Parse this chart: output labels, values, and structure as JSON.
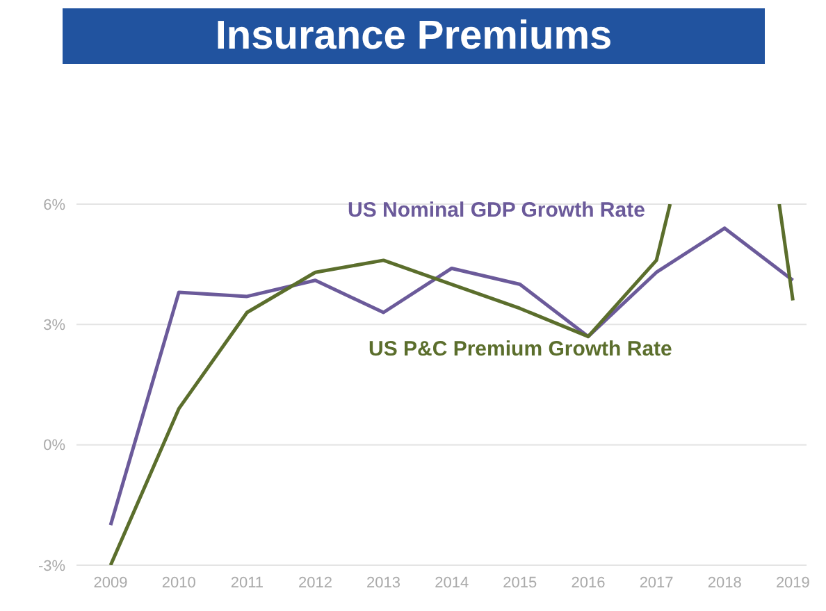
{
  "chart_data": {
    "type": "line",
    "title": "Insurance Premiums",
    "x": [
      2009,
      2010,
      2011,
      2012,
      2013,
      2014,
      2015,
      2016,
      2017,
      2018,
      2019
    ],
    "series": [
      {
        "name": "US Nominal GDP Growth Rate",
        "color": "#6b5a9a",
        "values": [
          -2.0,
          3.8,
          3.7,
          4.1,
          3.3,
          4.4,
          4.0,
          2.7,
          4.3,
          5.4,
          4.1
        ]
      },
      {
        "name": "US P&C Premium Growth Rate",
        "color": "#5b6e2c",
        "x": [
          2009,
          2010,
          2011,
          2012,
          2013,
          2014,
          2015,
          2016,
          2017,
          2017.2,
          2018,
          2018.8,
          2019
        ],
        "values": [
          -3.0,
          0.9,
          3.3,
          4.3,
          4.6,
          4.0,
          3.4,
          2.7,
          4.6,
          6.0,
          null,
          6.0,
          3.6
        ]
      }
    ],
    "xlim": [
      2008.5,
      2019.2
    ],
    "xticks": [
      2009,
      2010,
      2011,
      2012,
      2013,
      2014,
      2015,
      2016,
      2017,
      2018,
      2019
    ],
    "ylim": [
      -3,
      6
    ],
    "yticks": [
      {
        "value": -3,
        "label": "-3%"
      },
      {
        "value": 0,
        "label": "0%"
      },
      {
        "value": 3,
        "label": "3%"
      },
      {
        "value": 6,
        "label": "6%"
      }
    ],
    "grid": "y",
    "marker": "none",
    "line_style": "solid",
    "legend": false
  }
}
